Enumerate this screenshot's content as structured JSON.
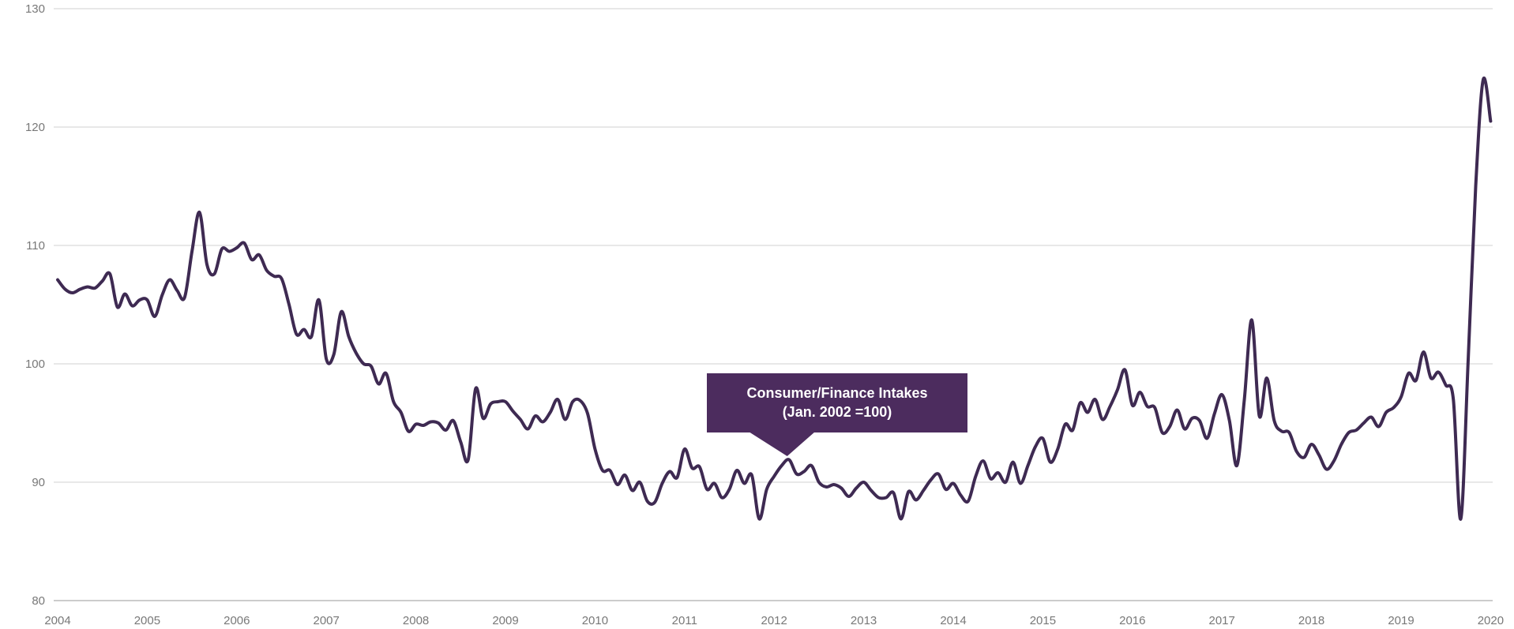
{
  "chart_data": {
    "type": "line",
    "annotation": {
      "line1": "Consumer/Finance Intakes",
      "line2": "(Jan. 2002 =100)"
    },
    "x_axis": {
      "ticks": [
        "2004",
        "2005",
        "2006",
        "2007",
        "2008",
        "2009",
        "2010",
        "2011",
        "2012",
        "2013",
        "2014",
        "2015",
        "2016",
        "2017",
        "2018",
        "2019",
        "2020"
      ]
    },
    "y_axis": {
      "ticks": [
        80,
        90,
        100,
        110,
        120,
        130
      ],
      "range": [
        80,
        130
      ]
    },
    "frequency": "monthly",
    "grid": "horizontal-only",
    "legend": "none",
    "series": [
      {
        "name": "Consumer/Finance Intakes (Jan. 2002 = 100)",
        "start": "2004-01",
        "end": "2020-01",
        "values": [
          107.1,
          106.3,
          106.0,
          106.3,
          106.5,
          106.4,
          107.0,
          107.6,
          104.8,
          105.9,
          104.9,
          105.4,
          105.4,
          104.0,
          105.8,
          107.1,
          106.2,
          105.6,
          109.5,
          112.8,
          108.4,
          107.6,
          109.7,
          109.5,
          109.8,
          110.2,
          108.8,
          109.2,
          107.9,
          107.4,
          107.2,
          105.0,
          102.5,
          102.9,
          102.3,
          105.4,
          100.4,
          100.8,
          104.4,
          102.3,
          100.9,
          100.0,
          99.8,
          98.3,
          99.2,
          96.8,
          95.9,
          94.3,
          94.9,
          94.8,
          95.1,
          95.0,
          94.4,
          95.2,
          93.4,
          91.9,
          97.9,
          95.4,
          96.6,
          96.8,
          96.8,
          96.0,
          95.3,
          94.5,
          95.6,
          95.1,
          95.9,
          97.0,
          95.3,
          96.8,
          96.9,
          95.8,
          92.8,
          91.0,
          91.0,
          89.8,
          90.6,
          89.3,
          90.0,
          88.4,
          88.3,
          89.9,
          90.9,
          90.4,
          92.8,
          91.2,
          91.3,
          89.4,
          89.9,
          88.7,
          89.4,
          91.0,
          89.9,
          90.6,
          86.9,
          89.4,
          90.5,
          91.4,
          91.9,
          90.7,
          90.9,
          91.4,
          90.0,
          89.6,
          89.8,
          89.5,
          88.8,
          89.5,
          90.0,
          89.3,
          88.7,
          88.7,
          89.1,
          86.9,
          89.2,
          88.5,
          89.3,
          90.2,
          90.7,
          89.4,
          89.9,
          88.9,
          88.4,
          90.5,
          91.8,
          90.3,
          90.8,
          90.0,
          91.7,
          89.9,
          91.4,
          93.0,
          93.7,
          91.7,
          92.8,
          94.9,
          94.4,
          96.7,
          95.9,
          97.0,
          95.3,
          96.4,
          97.8,
          99.5,
          96.5,
          97.6,
          96.4,
          96.3,
          94.2,
          94.7,
          96.1,
          94.5,
          95.4,
          95.2,
          93.7,
          95.8,
          97.4,
          95.2,
          91.4,
          97.0,
          103.7,
          95.6,
          98.8,
          95.2,
          94.3,
          94.2,
          92.6,
          92.1,
          93.2,
          92.3,
          91.1,
          91.8,
          93.2,
          94.2,
          94.4,
          95.0,
          95.5,
          94.7,
          95.9,
          96.3,
          97.2,
          99.2,
          98.6,
          101.0,
          98.8,
          99.3,
          98.2,
          97.0,
          86.9,
          100.5,
          115.0,
          124.0,
          120.5
        ]
      }
    ],
    "colors": {
      "line": "#3e2a52",
      "annotation_bg": "#4c2c5e",
      "annotation_text": "#ffffff",
      "gridline": "#d9d9d9",
      "axis_line": "#adadad",
      "tick_label": "#787878",
      "background": "#ffffff"
    }
  }
}
